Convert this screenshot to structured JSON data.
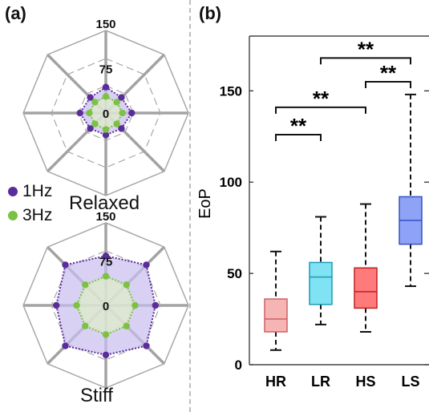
{
  "panels": {
    "a": "(a)",
    "b": "(b)"
  },
  "legend": [
    {
      "label": "1Hz",
      "color": "#5b2d9a"
    },
    {
      "label": "3Hz",
      "color": "#7cc142"
    }
  ],
  "chart_data": [
    {
      "type": "radar",
      "title": "Relaxed",
      "rings": [
        0,
        75,
        150
      ],
      "rmax": 150,
      "axes": 8,
      "series": [
        {
          "name": "1Hz",
          "color": "#5b2d9a",
          "fill": "#c7bdf0",
          "values": [
            47,
            40,
            47,
            40,
            40,
            40,
            47,
            40
          ]
        },
        {
          "name": "3Hz",
          "color": "#7cc142",
          "fill": "#dff0c8",
          "values": [
            30,
            28,
            30,
            28,
            30,
            28,
            30,
            28
          ]
        }
      ]
    },
    {
      "type": "radar",
      "title": "Stiff",
      "rings": [
        0,
        75,
        150
      ],
      "rmax": 150,
      "axes": 8,
      "series": [
        {
          "name": "1Hz",
          "color": "#5b2d9a",
          "fill": "#c7bdf0",
          "values": [
            90,
            104,
            90,
            104,
            90,
            104,
            90,
            104
          ]
        },
        {
          "name": "3Hz",
          "color": "#7cc142",
          "fill": "#dff0c8",
          "values": [
            53,
            53,
            53,
            53,
            53,
            53,
            53,
            53
          ]
        }
      ]
    },
    {
      "type": "box",
      "ylabel": "EoP",
      "ylim": [
        0,
        180
      ],
      "yticks": [
        0,
        50,
        100,
        150
      ],
      "categories": [
        "HR",
        "LR",
        "HS",
        "LS"
      ],
      "boxes": [
        {
          "name": "HR",
          "min": 8,
          "q1": 18,
          "median": 25,
          "q3": 36,
          "max": 62,
          "fill": "#f5b5b5",
          "stroke": "#d06060"
        },
        {
          "name": "LR",
          "min": 22,
          "q1": 33,
          "median": 48,
          "q3": 56,
          "max": 81,
          "fill": "#7fe3f4",
          "stroke": "#1e9ab5"
        },
        {
          "name": "HS",
          "min": 18,
          "q1": 31,
          "median": 40,
          "q3": 53,
          "max": 88,
          "fill": "#ff7a7a",
          "stroke": "#c02020"
        },
        {
          "name": "LS",
          "min": 43,
          "q1": 66,
          "median": 79,
          "q3": 92,
          "max": 148,
          "fill": "#8ea3f5",
          "stroke": "#3550c8"
        }
      ],
      "significance": [
        {
          "from": "HR",
          "to": "LR",
          "label": "**",
          "y": 126
        },
        {
          "from": "HR",
          "to": "HS",
          "label": "**",
          "y": 141
        },
        {
          "from": "HS",
          "to": "LS",
          "label": "**",
          "y": 155
        },
        {
          "from": "LR",
          "to": "LS",
          "label": "**",
          "y": 168
        }
      ]
    }
  ]
}
